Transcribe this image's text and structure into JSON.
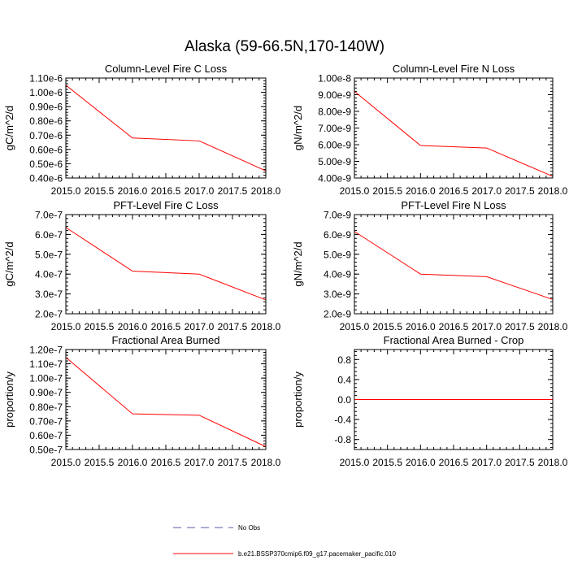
{
  "figure_title": "Alaska (59-66.5N,170-140W)",
  "colors": {
    "model": "#ff0000",
    "obs": "#5a5aa8"
  },
  "legend": {
    "obs_label": "No Obs",
    "model_label": "b.e21.BSSP370cmip6.f09_g17.pacemaker_pacific.010"
  },
  "chart_data": [
    {
      "type": "line",
      "title": "Column-Level Fire C Loss",
      "ylabel": "gC/m^2/d",
      "x": [
        2015.0,
        2016.0,
        2017.0,
        2018.0
      ],
      "xlim": [
        2015.0,
        2018.0
      ],
      "xticks": [
        "2015.0",
        "2015.5",
        "2016.0",
        "2016.5",
        "2017.0",
        "2017.5",
        "2018.0"
      ],
      "ylim": [
        4e-07,
        1.1e-06
      ],
      "yticks": [
        4e-07,
        5e-07,
        6e-07,
        7e-07,
        8e-07,
        9e-07,
        1e-06,
        1.1e-06
      ],
      "yticklabels": [
        "0.40e-6",
        "0.50e-6",
        "0.60e-6",
        "0.70e-6",
        "0.80e-6",
        "0.90e-6",
        "1.00e-6",
        "1.10e-6"
      ],
      "series": [
        {
          "name": "b.e21.BSSP370cmip6.f09_g17.pacemaker_pacific.010",
          "values": [
            1.05e-06,
            6.8e-07,
            6.6e-07,
            4.5e-07
          ]
        }
      ]
    },
    {
      "type": "line",
      "title": "Column-Level Fire N Loss",
      "ylabel": "gN/m^2/d",
      "x": [
        2015.0,
        2016.0,
        2017.0,
        2018.0
      ],
      "xlim": [
        2015.0,
        2018.0
      ],
      "xticks": [
        "2015.0",
        "2015.5",
        "2016.0",
        "2016.5",
        "2017.0",
        "2017.5",
        "2018.0"
      ],
      "ylim": [
        4e-09,
        1e-08
      ],
      "yticks": [
        4e-09,
        5e-09,
        6e-09,
        7e-09,
        8e-09,
        9e-09,
        1e-08
      ],
      "yticklabels": [
        "4.00e-9",
        "5.00e-9",
        "6.00e-9",
        "7.00e-9",
        "8.00e-9",
        "9.00e-9",
        "1.00e-8"
      ],
      "series": [
        {
          "name": "b.e21.BSSP370cmip6.f09_g17.pacemaker_pacific.010",
          "values": [
            9.2e-09,
            5.95e-09,
            5.8e-09,
            4.1e-09
          ]
        }
      ]
    },
    {
      "type": "line",
      "title": "PFT-Level Fire C Loss",
      "ylabel": "gC/m^2/d",
      "x": [
        2015.0,
        2016.0,
        2017.0,
        2018.0
      ],
      "xlim": [
        2015.0,
        2018.0
      ],
      "xticks": [
        "2015.0",
        "2015.5",
        "2016.0",
        "2016.5",
        "2017.0",
        "2017.5",
        "2018.0"
      ],
      "ylim": [
        2e-07,
        7e-07
      ],
      "yticks": [
        2e-07,
        3e-07,
        4e-07,
        5e-07,
        6e-07,
        7e-07
      ],
      "yticklabels": [
        "2.0e-7",
        "3.0e-7",
        "4.0e-7",
        "5.0e-7",
        "6.0e-7",
        "7.0e-7"
      ],
      "series": [
        {
          "name": "b.e21.BSSP370cmip6.f09_g17.pacemaker_pacific.010",
          "values": [
            6.35e-07,
            4.15e-07,
            4e-07,
            2.7e-07
          ]
        }
      ]
    },
    {
      "type": "line",
      "title": "PFT-Level Fire N Loss",
      "ylabel": "gN/m^2/d",
      "x": [
        2015.0,
        2016.0,
        2017.0,
        2018.0
      ],
      "xlim": [
        2015.0,
        2018.0
      ],
      "xticks": [
        "2015.0",
        "2015.5",
        "2016.0",
        "2016.5",
        "2017.0",
        "2017.5",
        "2018.0"
      ],
      "ylim": [
        2e-09,
        7e-09
      ],
      "yticks": [
        2e-09,
        3e-09,
        4e-09,
        5e-09,
        6e-09,
        7e-09
      ],
      "yticklabels": [
        "2.0e-9",
        "3.0e-9",
        "4.0e-9",
        "5.0e-9",
        "6.0e-9",
        "7.0e-9"
      ],
      "series": [
        {
          "name": "b.e21.BSSP370cmip6.f09_g17.pacemaker_pacific.010",
          "values": [
            6.15e-09,
            4e-09,
            3.87e-09,
            2.72e-09
          ]
        }
      ]
    },
    {
      "type": "line",
      "title": "Fractional Area Burned",
      "ylabel": "proportion/y",
      "x": [
        2015.0,
        2016.0,
        2017.0,
        2018.0
      ],
      "xlim": [
        2015.0,
        2018.0
      ],
      "xticks": [
        "2015.0",
        "2015.5",
        "2016.0",
        "2016.5",
        "2017.0",
        "2017.5",
        "2018.0"
      ],
      "ylim": [
        5e-08,
        1.2e-07
      ],
      "yticks": [
        5e-08,
        6e-08,
        7e-08,
        8e-08,
        9e-08,
        1e-07,
        1.1e-07,
        1.2e-07
      ],
      "yticklabels": [
        "0.50e-7",
        "0.60e-7",
        "0.70e-7",
        "0.80e-7",
        "0.90e-7",
        "1.00e-7",
        "1.10e-7",
        "1.20e-7"
      ],
      "series": [
        {
          "name": "b.e21.BSSP370cmip6.f09_g17.pacemaker_pacific.010",
          "values": [
            1.145e-07,
            7.5e-08,
            7.4e-08,
            5.2e-08
          ]
        }
      ]
    },
    {
      "type": "line",
      "title": "Fractional Area Burned - Crop",
      "ylabel": "proportion/y",
      "x": [
        2015.0,
        2016.0,
        2017.0,
        2018.0
      ],
      "xlim": [
        2015.0,
        2018.0
      ],
      "xticks": [
        "2015.0",
        "2015.5",
        "2016.0",
        "2016.5",
        "2017.0",
        "2017.5",
        "2018.0"
      ],
      "ylim": [
        -1.0,
        1.0
      ],
      "yticks": [
        -0.8,
        -0.4,
        0.0,
        0.4,
        0.8
      ],
      "yticklabels": [
        "-0.8",
        "-0.4",
        "0.0",
        "0.4",
        "0.8"
      ],
      "series": [
        {
          "name": "b.e21.BSSP370cmip6.f09_g17.pacemaker_pacific.010",
          "values": [
            0.0,
            0.0,
            0.0,
            0.0
          ]
        }
      ]
    }
  ]
}
